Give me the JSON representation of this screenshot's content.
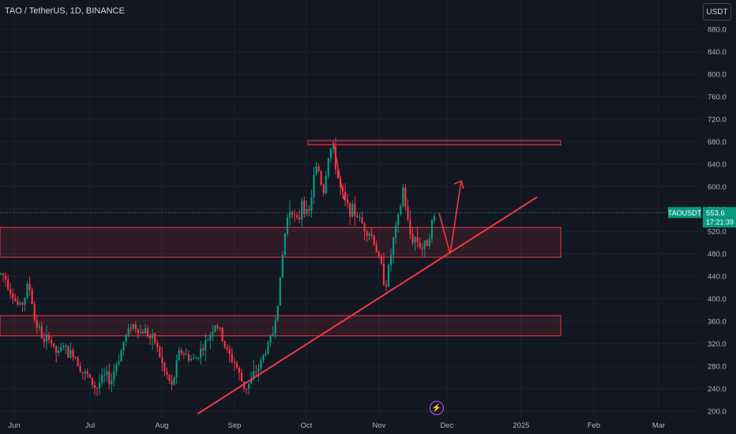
{
  "header": {
    "title": "TAO / TetherUS, 1D, BINANCE",
    "currency_button": "USDT"
  },
  "price_marker": {
    "symbol": "TAOUSDT",
    "price": "553.6",
    "countdown": "17:21:39",
    "color": "#089981"
  },
  "event_icon": "lightning-icon",
  "colors": {
    "background": "#131722",
    "up": "#089981",
    "down": "#f23645",
    "zone_stroke": "#f23645",
    "trendline": "#f23645"
  },
  "chart_data": {
    "type": "candlestick",
    "y_axis_ticks": [
      "880.0",
      "840.0",
      "800.0",
      "760.0",
      "720.0",
      "680.0",
      "640.0",
      "600.0",
      "560.0",
      "520.0",
      "480.0",
      "440.0",
      "400.0",
      "360.0",
      "320.0",
      "280.0",
      "240.0",
      "200.0"
    ],
    "x_axis_labels": [
      "Jun",
      "Jul",
      "Aug",
      "Sep",
      "Oct",
      "Nov",
      "Dec",
      "2025",
      "Feb",
      "Mar"
    ],
    "ylim": [
      195,
      905
    ],
    "close_path": [
      [
        0,
        445
      ],
      [
        6,
        440
      ],
      [
        12,
        420
      ],
      [
        18,
        400
      ],
      [
        24,
        385
      ],
      [
        30,
        395
      ],
      [
        36,
        430
      ],
      [
        40,
        400
      ],
      [
        44,
        360
      ],
      [
        50,
        345
      ],
      [
        56,
        320
      ],
      [
        62,
        335
      ],
      [
        68,
        310
      ],
      [
        74,
        300
      ],
      [
        80,
        320
      ],
      [
        86,
        300
      ],
      [
        92,
        305
      ],
      [
        98,
        290
      ],
      [
        104,
        270
      ],
      [
        110,
        265
      ],
      [
        116,
        250
      ],
      [
        122,
        240
      ],
      [
        128,
        255
      ],
      [
        134,
        265
      ],
      [
        140,
        250
      ],
      [
        146,
        280
      ],
      [
        152,
        300
      ],
      [
        158,
        330
      ],
      [
        162,
        340
      ],
      [
        166,
        355
      ],
      [
        172,
        350
      ],
      [
        178,
        340
      ],
      [
        184,
        345
      ],
      [
        190,
        330
      ],
      [
        196,
        325
      ],
      [
        202,
        300
      ],
      [
        208,
        270
      ],
      [
        214,
        255
      ],
      [
        218,
        240
      ],
      [
        222,
        275
      ],
      [
        228,
        310
      ],
      [
        234,
        300
      ],
      [
        240,
        295
      ],
      [
        246,
        290
      ],
      [
        252,
        305
      ],
      [
        258,
        315
      ],
      [
        264,
        330
      ],
      [
        268,
        345
      ],
      [
        272,
        355
      ],
      [
        276,
        350
      ],
      [
        280,
        335
      ],
      [
        286,
        310
      ],
      [
        292,
        295
      ],
      [
        298,
        285
      ],
      [
        304,
        260
      ],
      [
        310,
        240
      ],
      [
        316,
        250
      ],
      [
        322,
        265
      ],
      [
        328,
        280
      ],
      [
        334,
        300
      ],
      [
        340,
        320
      ],
      [
        346,
        340
      ],
      [
        350,
        380
      ],
      [
        354,
        420
      ],
      [
        358,
        480
      ],
      [
        362,
        530
      ],
      [
        366,
        560
      ],
      [
        370,
        560
      ],
      [
        374,
        540
      ],
      [
        378,
        530
      ],
      [
        382,
        580
      ],
      [
        386,
        560
      ],
      [
        390,
        540
      ],
      [
        394,
        580
      ],
      [
        398,
        620
      ],
      [
        402,
        640
      ],
      [
        406,
        610
      ],
      [
        410,
        590
      ],
      [
        414,
        640
      ],
      [
        418,
        670
      ],
      [
        422,
        660
      ],
      [
        426,
        630
      ],
      [
        430,
        600
      ],
      [
        436,
        575
      ],
      [
        442,
        560
      ],
      [
        448,
        555
      ],
      [
        454,
        545
      ],
      [
        460,
        530
      ],
      [
        466,
        520
      ],
      [
        472,
        510
      ],
      [
        478,
        480
      ],
      [
        484,
        450
      ],
      [
        488,
        420
      ],
      [
        494,
        470
      ],
      [
        500,
        520
      ],
      [
        506,
        550
      ],
      [
        510,
        600
      ],
      [
        514,
        560
      ],
      [
        518,
        520
      ],
      [
        522,
        505
      ],
      [
        526,
        510
      ],
      [
        530,
        500
      ],
      [
        534,
        490
      ],
      [
        538,
        495
      ],
      [
        542,
        505
      ],
      [
        546,
        530
      ],
      [
        550,
        545
      ],
      [
        553,
        553.6
      ]
    ],
    "annotations": {
      "resistance_line": {
        "x_range": [
          390,
          710
        ],
        "y_range": [
          674,
          682
        ]
      },
      "upper_zone": {
        "x_range": [
          0,
          710
        ],
        "y_range": [
          474,
          527
        ]
      },
      "lower_zone": {
        "x_range": [
          0,
          710
        ],
        "y_range": [
          334,
          370
        ]
      },
      "trendline": {
        "from": [
          250,
          195
        ],
        "to": [
          680,
          581
        ]
      },
      "projection_arrow": [
        [
          556,
          553
        ],
        [
          570,
          480
        ],
        [
          584,
          610
        ]
      ],
      "drop_arrow": [
        [
          422,
          680
        ],
        [
          436,
          575
        ]
      ]
    },
    "last_price": 553.6,
    "title": "TAO / TetherUS, 1D, BINANCE"
  }
}
